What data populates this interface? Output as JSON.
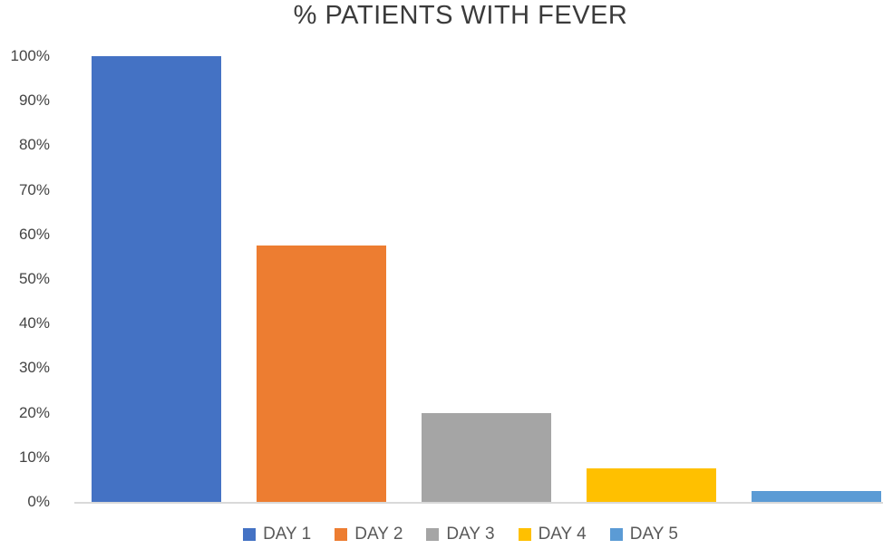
{
  "chart_data": {
    "type": "bar",
    "title": "% PATIENTS WITH FEVER",
    "categories": [
      "DAY 1",
      "DAY 2",
      "DAY 3",
      "DAY 4",
      "DAY 5"
    ],
    "values": [
      100,
      57.5,
      20,
      7.5,
      2.5
    ],
    "unit": "%",
    "xlabel": "",
    "ylabel": "",
    "ylim": [
      0,
      100
    ],
    "ytick_step": 10,
    "ytick_labels": [
      "0%",
      "10%",
      "20%",
      "30%",
      "40%",
      "50%",
      "60%",
      "70%",
      "80%",
      "90%",
      "100%"
    ],
    "grid": false,
    "legend_position": "bottom",
    "series_colors": [
      "#4472C4",
      "#ED7D31",
      "#A5A5A5",
      "#FFC000",
      "#5B9BD5"
    ]
  },
  "legend": {
    "items": [
      {
        "label": "DAY 1",
        "color": "#4472C4"
      },
      {
        "label": "DAY 2",
        "color": "#ED7D31"
      },
      {
        "label": "DAY 3",
        "color": "#A5A5A5"
      },
      {
        "label": "DAY 4",
        "color": "#FFC000"
      },
      {
        "label": "DAY 5",
        "color": "#5B9BD5"
      }
    ]
  },
  "colors": {
    "background": "#FFFFFF",
    "title_text": "#3B3B3B",
    "axis_text": "#444444",
    "legend_text": "#595959",
    "axis_line": "#D9D9D9"
  }
}
